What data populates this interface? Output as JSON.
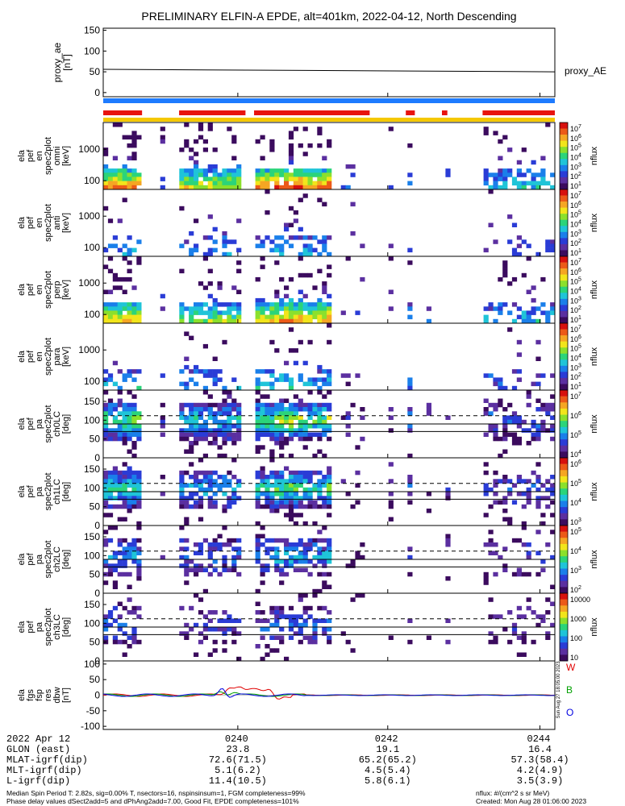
{
  "title": "PRELIMINARY ELFIN-A EPDE, alt=401km, 2022-04-12, North Descending",
  "colors": {
    "indicator_blue": "#1e7bff",
    "indicator_red": "#e8140e",
    "indicator_yellow": "#f5c800",
    "colorbar": [
      "#ffffff",
      "#3b0b5e",
      "#5b2fa0",
      "#2a3cd6",
      "#1a7fea",
      "#1fc4d8",
      "#2bd47a",
      "#8be02c",
      "#f2e51b",
      "#f5a623",
      "#ec5a18",
      "#d7110e"
    ],
    "bfield": {
      "W": "#e00000",
      "B": "#00a000",
      "O": "#0000e0"
    }
  },
  "chart_data": [
    {
      "type": "line",
      "panel": "proxy_ae",
      "ylabel": "proxy_ae\n[nT]",
      "ylim": [
        -10,
        155
      ],
      "yticks": [
        "150",
        "100",
        "50",
        "0"
      ],
      "yticks_values": [
        150,
        100,
        50,
        0
      ],
      "legend": "proxy_AE",
      "x": [
        "02:38:30",
        "02:44:20"
      ],
      "y": [
        56,
        50
      ]
    },
    {
      "type": "heatmap",
      "panel": "ela pef en spec2plot omni",
      "ylabel": "ela\npef\nen\nspec2plot\nomni\n[keV]",
      "yscale": "log",
      "yticks": [
        "1000",
        "100"
      ],
      "colorbar_label": "nflux",
      "colorbar_ticks": [
        "10^7",
        "10^6",
        "10^5",
        "10^4",
        "10^3",
        "10^2",
        "10^1"
      ]
    },
    {
      "type": "heatmap",
      "panel": "ela pef en spec2plot anti",
      "ylabel": "ela\npef\nen\nspec2plot\nanti\n[keV]",
      "yscale": "log",
      "yticks": [
        "1000",
        "100"
      ],
      "colorbar_label": "nflux",
      "colorbar_ticks": [
        "10^7",
        "10^6",
        "10^5",
        "10^4",
        "10^3",
        "10^2",
        "10^1"
      ]
    },
    {
      "type": "heatmap",
      "panel": "ela pef en spec2plot perp",
      "ylabel": "ela\npef\nen\nspec2plot\nperp\n[keV]",
      "yscale": "log",
      "yticks": [
        "1000",
        "100"
      ],
      "colorbar_label": "nflux",
      "colorbar_ticks": [
        "10^7",
        "10^6",
        "10^5",
        "10^4",
        "10^3",
        "10^2",
        "10^1"
      ]
    },
    {
      "type": "heatmap",
      "panel": "ela pef en spec2plot para",
      "ylabel": "ela\npef\nen\nspec2plot\npara\n[keV]",
      "yscale": "log",
      "yticks": [
        "1000",
        "100"
      ],
      "colorbar_label": "nflux",
      "colorbar_ticks": [
        "10^7",
        "10^6",
        "10^5",
        "10^4",
        "10^3",
        "10^2",
        "10^1"
      ]
    },
    {
      "type": "heatmap",
      "panel": "ela pef pa spec2plot ch0LC",
      "ylabel": "ela\npef\npa\nspec2plot\nch0LC\n[deg]",
      "ylim": [
        0,
        180
      ],
      "yticks": [
        "150",
        "100",
        "50",
        "0"
      ],
      "colorbar_label": "nflux",
      "colorbar_ticks": [
        "10^7",
        "10^6",
        "10^5",
        "10^4"
      ]
    },
    {
      "type": "heatmap",
      "panel": "ela pef pa spec2plot ch1LC",
      "ylabel": "ela\npef\npa\nspec2plot\nch1LC\n[deg]",
      "ylim": [
        0,
        180
      ],
      "yticks": [
        "150",
        "100",
        "50",
        "0"
      ],
      "colorbar_label": "nflux",
      "colorbar_ticks": [
        "10^6",
        "10^5",
        "10^4",
        "10^3"
      ]
    },
    {
      "type": "heatmap",
      "panel": "ela pef pa spec2plot ch2LC",
      "ylabel": "ela\npef\npa\nspec2plot\nch2LC\n[deg]",
      "ylim": [
        0,
        180
      ],
      "yticks": [
        "150",
        "100",
        "50",
        "0"
      ],
      "colorbar_label": "nflux",
      "colorbar_ticks": [
        "10^5",
        "10^4",
        "10^3",
        "10^2"
      ]
    },
    {
      "type": "heatmap",
      "panel": "ela pef pa spec2plot ch3LC",
      "ylabel": "ela\npef\npa\nspec2plot\nch3LC\n[deg]",
      "ylim": [
        0,
        180
      ],
      "yticks": [
        "150",
        "100",
        "50",
        "0"
      ],
      "colorbar_label": "nflux",
      "colorbar_ticks": [
        "10000",
        "1000",
        "100",
        "10"
      ]
    },
    {
      "type": "line",
      "panel": "ela fgs fsp res dbw",
      "ylabel": "ela\nfgs\nfsp\nres\ndbw\n[nT]",
      "ylim": [
        -110,
        110
      ],
      "yticks": [
        "100",
        "50",
        "0",
        "-50",
        "-100"
      ],
      "yticks_values": [
        100,
        50,
        0,
        -50,
        -100
      ],
      "series": [
        {
          "name": "W"
        },
        {
          "name": "B"
        },
        {
          "name": "O"
        }
      ],
      "side_note": "Sun Aug 27 18:05:00 2023"
    }
  ],
  "x_axis": {
    "tick_labels": [
      "0240",
      "0242",
      "0244"
    ],
    "date_label": "2022 Apr 12"
  },
  "ephemeris": [
    {
      "label": "GLON (east)",
      "values": [
        "23.8",
        "19.1",
        "16.4"
      ]
    },
    {
      "label": "MLAT-igrf(dip)",
      "values": [
        "72.6(71.5)",
        "65.2(65.2)",
        "57.3(58.4)"
      ]
    },
    {
      "label": "MLT-igrf(dip)",
      "values": [
        "5.1(6.2)",
        "4.5(5.4)",
        "4.2(4.9)"
      ]
    },
    {
      "label": "L-igrf(dip)",
      "values": [
        "11.4(10.5)",
        "5.8(6.1)",
        "3.5(3.9)"
      ]
    }
  ],
  "footer": {
    "line1": "Median Spin Period T: 2.82s, sig=0.00% T, nsectors=16, nspinsinsum=1, FGM completeness=99%",
    "line2": "Phase delay values dSect2add=5 and dPhAng2add=7.00, Good Fit, EPDE completeness=101%",
    "units": "nflux: #/(cm^2 s sr MeV)",
    "created": "Created: Mon Aug 28 01:06:00 2023"
  }
}
